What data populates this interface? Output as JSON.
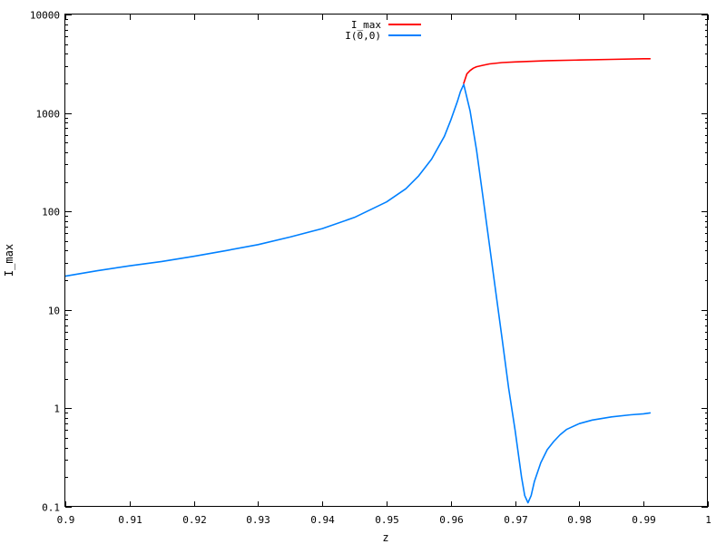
{
  "chart_data": {
    "type": "line",
    "title": "",
    "xlabel": "z",
    "ylabel": "I_max",
    "xlim": [
      0.9,
      1.0
    ],
    "ylim": [
      0.1,
      10000
    ],
    "yscale": "log",
    "grid": false,
    "legend_position": "top-center",
    "x_ticks": [
      "0.9",
      "0.91",
      "0.92",
      "0.93",
      "0.94",
      "0.95",
      "0.96",
      "0.97",
      "0.98",
      "0.99",
      "1"
    ],
    "y_ticks": [
      "0.1",
      "1",
      "10",
      "100",
      "1000",
      "10000"
    ],
    "series": [
      {
        "name": "I_max",
        "color": "#ff0000",
        "x": [
          0.962,
          0.9625,
          0.963,
          0.9635,
          0.964,
          0.965,
          0.966,
          0.968,
          0.97,
          0.975,
          0.98,
          0.985,
          0.99,
          0.991
        ],
        "y": [
          2000,
          2500,
          2700,
          2850,
          2950,
          3050,
          3150,
          3250,
          3300,
          3400,
          3450,
          3500,
          3550,
          3550
        ]
      },
      {
        "name": "I(0,0)",
        "color": "#0080ff",
        "x": [
          0.9,
          0.905,
          0.91,
          0.915,
          0.92,
          0.925,
          0.93,
          0.935,
          0.94,
          0.945,
          0.95,
          0.953,
          0.955,
          0.957,
          0.959,
          0.96,
          0.961,
          0.9615,
          0.962,
          0.963,
          0.964,
          0.965,
          0.966,
          0.967,
          0.968,
          0.969,
          0.97,
          0.971,
          0.9715,
          0.972,
          0.9725,
          0.973,
          0.974,
          0.975,
          0.976,
          0.977,
          0.978,
          0.98,
          0.982,
          0.985,
          0.988,
          0.99,
          0.991
        ],
        "y": [
          22,
          25,
          28,
          31,
          35,
          40,
          46,
          55,
          67,
          87,
          125,
          170,
          230,
          340,
          580,
          850,
          1300,
          1650,
          1950,
          1050,
          420,
          140,
          46,
          15,
          5,
          1.6,
          0.6,
          0.2,
          0.13,
          0.11,
          0.13,
          0.18,
          0.28,
          0.38,
          0.46,
          0.54,
          0.61,
          0.7,
          0.76,
          0.82,
          0.86,
          0.88,
          0.9
        ]
      }
    ]
  }
}
